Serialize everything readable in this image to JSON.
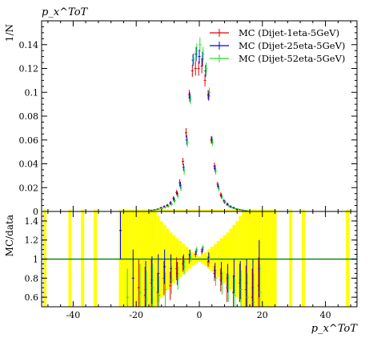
{
  "chart_data": [
    {
      "type": "scatter",
      "ylabel": "1/N",
      "top_label": "p_x^ToT",
      "xlim": [
        -50,
        50
      ],
      "ylim": [
        0,
        0.16
      ],
      "yticks": [
        "0",
        "0.02",
        "0.04",
        "0.06",
        "0.08",
        "0.1",
        "0.12",
        "0.14"
      ],
      "legend_position": "top-right",
      "series": [
        {
          "name": "MC (Dijet-1eta-5GeV)",
          "color": "#dd0000",
          "x": [
            -15,
            -14,
            -13,
            -12,
            -11,
            -10,
            -9,
            -8,
            -7,
            -6,
            -5,
            -4,
            -3,
            -2,
            -1,
            0,
            1,
            2,
            3,
            4,
            5,
            6,
            7,
            8,
            9,
            10,
            11,
            12,
            13,
            14,
            15
          ],
          "y": [
            0.001,
            0.0015,
            0.002,
            0.003,
            0.004,
            0.005,
            0.007,
            0.011,
            0.016,
            0.024,
            0.042,
            0.066,
            0.098,
            0.118,
            0.12,
            0.12,
            0.122,
            0.11,
            0.098,
            0.06,
            0.038,
            0.023,
            0.014,
            0.009,
            0.006,
            0.004,
            0.003,
            0.002,
            0.0015,
            0.001,
            0.0005
          ],
          "yerr": [
            0.0005,
            0.0005,
            0.0006,
            0.0008,
            0.001,
            0.0012,
            0.0015,
            0.002,
            0.002,
            0.003,
            0.003,
            0.004,
            0.004,
            0.005,
            0.006,
            0.006,
            0.006,
            0.005,
            0.004,
            0.003,
            0.003,
            0.002,
            0.002,
            0.0015,
            0.0012,
            0.001,
            0.0008,
            0.0006,
            0.0005,
            0.0005,
            0.0004
          ]
        },
        {
          "name": "MC (Dijet-25eta-5GeV)",
          "color": "#0000ee",
          "x": [
            -15,
            -14,
            -13,
            -12,
            -11,
            -10,
            -9,
            -8,
            -7,
            -6,
            -5,
            -4,
            -3,
            -2,
            -1,
            0,
            1,
            2,
            3,
            4,
            5,
            6,
            7,
            8,
            9,
            10,
            11,
            12,
            13,
            14,
            15
          ],
          "y": [
            0.001,
            0.0015,
            0.002,
            0.003,
            0.004,
            0.005,
            0.007,
            0.01,
            0.015,
            0.022,
            0.037,
            0.06,
            0.096,
            0.127,
            0.132,
            0.13,
            0.128,
            0.118,
            0.097,
            0.06,
            0.036,
            0.021,
            0.013,
            0.008,
            0.006,
            0.004,
            0.003,
            0.002,
            0.0015,
            0.001,
            0.0005
          ],
          "yerr": [
            0.0005,
            0.0005,
            0.0006,
            0.0008,
            0.001,
            0.0012,
            0.0015,
            0.002,
            0.002,
            0.003,
            0.003,
            0.004,
            0.004,
            0.005,
            0.006,
            0.006,
            0.006,
            0.005,
            0.004,
            0.003,
            0.003,
            0.002,
            0.002,
            0.0015,
            0.0012,
            0.001,
            0.0008,
            0.0006,
            0.0005,
            0.0005,
            0.0004
          ]
        },
        {
          "name": "MC (Dijet-52eta-5GeV)",
          "color": "#22dd22",
          "x": [
            -15,
            -14,
            -13,
            -12,
            -11,
            -10,
            -9,
            -8,
            -7,
            -6,
            -5,
            -4,
            -3,
            -2,
            -1,
            0,
            1,
            2,
            3,
            4,
            5,
            6,
            7,
            8,
            9,
            10,
            11,
            12,
            13,
            14,
            15
          ],
          "y": [
            0.001,
            0.0015,
            0.002,
            0.0025,
            0.0035,
            0.0045,
            0.006,
            0.009,
            0.013,
            0.02,
            0.034,
            0.058,
            0.094,
            0.128,
            0.135,
            0.14,
            0.132,
            0.12,
            0.1,
            0.058,
            0.034,
            0.019,
            0.012,
            0.008,
            0.005,
            0.0035,
            0.0025,
            0.002,
            0.0015,
            0.001,
            0.0005
          ],
          "yerr": [
            0.0005,
            0.0005,
            0.0006,
            0.0008,
            0.001,
            0.0012,
            0.0015,
            0.002,
            0.002,
            0.003,
            0.003,
            0.004,
            0.004,
            0.005,
            0.006,
            0.006,
            0.006,
            0.005,
            0.004,
            0.003,
            0.003,
            0.002,
            0.002,
            0.0015,
            0.0012,
            0.001,
            0.0008,
            0.0006,
            0.0005,
            0.0005,
            0.0004
          ]
        }
      ]
    },
    {
      "type": "scatter",
      "ylabel": "MC/data",
      "xlabel": "p_x^ToT",
      "xlim": [
        -50,
        50
      ],
      "ylim": [
        0.5,
        1.5
      ],
      "yticks": [
        "0.6",
        "0.8",
        "1",
        "1.2",
        "1.4"
      ],
      "xticks": [
        "-40",
        "-20",
        "0",
        "20",
        "40"
      ],
      "band_color": "#ffff00",
      "reference_line": 1,
      "data_uncertainty_band": {
        "x": [
          -49,
          -41,
          -37,
          -33,
          -25,
          -24,
          -23,
          -22,
          -21,
          -20,
          -19,
          -18,
          -17,
          -16,
          -15,
          -14,
          -13,
          -12,
          -11,
          -10,
          -9,
          -8,
          -7,
          -6,
          -5,
          -4,
          -3,
          -2,
          -1,
          0,
          1,
          2,
          3,
          4,
          5,
          6,
          7,
          8,
          9,
          10,
          11,
          12,
          13,
          14,
          15,
          16,
          17,
          18,
          19,
          20,
          21,
          22,
          23,
          24,
          29,
          33,
          47
        ],
        "half_width": [
          0.6,
          0.6,
          0.6,
          0.6,
          0.6,
          0.6,
          0.6,
          0.6,
          0.6,
          0.6,
          0.6,
          0.6,
          0.6,
          0.6,
          0.6,
          0.5,
          0.45,
          0.4,
          0.36,
          0.32,
          0.28,
          0.25,
          0.22,
          0.19,
          0.16,
          0.13,
          0.1,
          0.07,
          0.05,
          0.03,
          0.05,
          0.07,
          0.1,
          0.13,
          0.16,
          0.19,
          0.22,
          0.25,
          0.28,
          0.32,
          0.36,
          0.4,
          0.45,
          0.5,
          0.55,
          0.6,
          0.6,
          0.6,
          0.6,
          0.6,
          0.6,
          0.6,
          0.6,
          0.6,
          0.6,
          0.6,
          0.6
        ]
      },
      "series": [
        {
          "name": "MC (Dijet-1eta-5GeV)",
          "color": "#dd0000",
          "x": [
            -19,
            -17,
            -15,
            -13,
            -11,
            -9,
            -7,
            -5,
            -3,
            -1,
            1,
            3,
            5,
            7,
            9,
            11,
            13,
            15,
            17,
            19
          ],
          "y": [
            0.7,
            0.62,
            0.75,
            0.65,
            0.8,
            0.72,
            0.9,
            0.95,
            1.0,
            1.05,
            1.08,
            0.97,
            0.85,
            0.78,
            0.7,
            0.65,
            0.75,
            0.68,
            0.6,
            0.72
          ],
          "yerr": [
            0.3,
            0.3,
            0.25,
            0.2,
            0.18,
            0.15,
            0.12,
            0.08,
            0.05,
            0.03,
            0.03,
            0.05,
            0.08,
            0.12,
            0.15,
            0.18,
            0.2,
            0.25,
            0.3,
            0.3
          ]
        },
        {
          "name": "MC (Dijet-25eta-5GeV)",
          "color": "#0000ee",
          "x": [
            -25,
            -21,
            -17,
            -15,
            -13,
            -11,
            -9,
            -7,
            -5,
            -3,
            -1,
            1,
            3,
            5,
            7,
            9,
            11,
            13,
            15,
            17,
            19
          ],
          "y": [
            1.3,
            0.8,
            0.68,
            0.78,
            0.85,
            0.92,
            0.9,
            0.85,
            0.97,
            1.05,
            1.08,
            1.1,
            1.02,
            0.88,
            0.85,
            0.8,
            0.82,
            0.78,
            0.75,
            0.7,
            0.9
          ],
          "yerr": [
            0.3,
            0.3,
            0.3,
            0.25,
            0.2,
            0.18,
            0.15,
            0.12,
            0.08,
            0.05,
            0.03,
            0.03,
            0.05,
            0.08,
            0.12,
            0.15,
            0.18,
            0.2,
            0.25,
            0.3,
            0.3
          ]
        },
        {
          "name": "MC (Dijet-52eta-5GeV)",
          "color": "#22dd22",
          "x": [
            -23,
            -19,
            -17,
            -15,
            -13,
            -11,
            -9,
            -7,
            -5,
            -3,
            -1,
            1,
            3,
            5,
            7,
            9,
            11,
            13,
            15,
            17,
            19
          ],
          "y": [
            0.6,
            0.65,
            0.58,
            0.7,
            0.62,
            0.68,
            0.78,
            0.8,
            0.92,
            1.02,
            1.1,
            1.12,
            1.0,
            0.8,
            0.75,
            0.7,
            0.62,
            0.68,
            0.6,
            0.55,
            0.65
          ],
          "yerr": [
            0.3,
            0.3,
            0.3,
            0.25,
            0.2,
            0.18,
            0.15,
            0.12,
            0.08,
            0.05,
            0.03,
            0.03,
            0.05,
            0.08,
            0.12,
            0.15,
            0.18,
            0.2,
            0.25,
            0.3,
            0.3
          ]
        }
      ]
    }
  ]
}
